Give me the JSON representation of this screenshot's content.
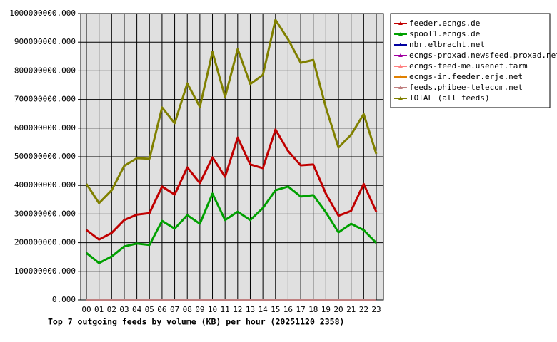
{
  "chart_data": {
    "type": "line",
    "title": "Top 7 outgoing feeds by volume (KB) per hour (20251120 2358)",
    "categories": [
      "00",
      "01",
      "02",
      "03",
      "04",
      "05",
      "06",
      "07",
      "08",
      "09",
      "10",
      "11",
      "12",
      "13",
      "14",
      "15",
      "16",
      "17",
      "18",
      "19",
      "20",
      "21",
      "22",
      "23"
    ],
    "ylim": [
      0,
      1000000000
    ],
    "yticks": [
      {
        "value": 0,
        "label": "0.000"
      },
      {
        "value": 100000000,
        "label": "100000000.000"
      },
      {
        "value": 200000000,
        "label": "200000000.000"
      },
      {
        "value": 300000000,
        "label": "300000000.000"
      },
      {
        "value": 400000000,
        "label": "400000000.000"
      },
      {
        "value": 500000000,
        "label": "500000000.000"
      },
      {
        "value": 600000000,
        "label": "600000000.000"
      },
      {
        "value": 700000000,
        "label": "700000000.000"
      },
      {
        "value": 800000000,
        "label": "800000000.000"
      },
      {
        "value": 900000000,
        "label": "900000000.000"
      },
      {
        "value": 1000000000,
        "label": "1000000000.000"
      }
    ],
    "grid": true,
    "legend": "right",
    "series": [
      {
        "name": "feeder.ecngs.de",
        "color": "#c00000",
        "values": [
          244000000,
          211000000,
          234000000,
          279000000,
          298000000,
          303000000,
          396000000,
          368000000,
          463000000,
          408000000,
          498000000,
          430000000,
          567000000,
          473000000,
          460000000,
          595000000,
          520000000,
          470000000,
          473000000,
          371000000,
          294000000,
          311000000,
          405000000,
          308000000
        ]
      },
      {
        "name": "spool1.ecngs.de",
        "color": "#00a000",
        "values": [
          164000000,
          129000000,
          152000000,
          187000000,
          197000000,
          192000000,
          276000000,
          249000000,
          296000000,
          266000000,
          371000000,
          279000000,
          308000000,
          279000000,
          321000000,
          383000000,
          396000000,
          361000000,
          366000000,
          306000000,
          236000000,
          266000000,
          244000000,
          199000000
        ]
      },
      {
        "name": "nbr.elbracht.net",
        "color": "#0000a0",
        "values": [
          0,
          0,
          0,
          0,
          0,
          0,
          0,
          0,
          0,
          0,
          0,
          0,
          0,
          0,
          0,
          0,
          0,
          0,
          0,
          0,
          0,
          0,
          0,
          0
        ]
      },
      {
        "name": "ecngs-proxad.newsfeed.proxad.net",
        "color": "#a000a0",
        "values": [
          0,
          0,
          0,
          0,
          0,
          0,
          0,
          0,
          0,
          0,
          0,
          0,
          0,
          0,
          0,
          0,
          0,
          0,
          0,
          0,
          0,
          0,
          0,
          0
        ]
      },
      {
        "name": "ecngs-feed-me.usenet.farm",
        "color": "#ff8080",
        "values": [
          0,
          0,
          0,
          0,
          0,
          0,
          0,
          0,
          0,
          0,
          0,
          0,
          0,
          0,
          0,
          0,
          0,
          0,
          0,
          0,
          0,
          0,
          0,
          0
        ]
      },
      {
        "name": "ecngs-in.feeder.erje.net",
        "color": "#e08000",
        "values": [
          0,
          0,
          0,
          0,
          0,
          0,
          0,
          0,
          0,
          0,
          0,
          0,
          0,
          0,
          0,
          0,
          0,
          0,
          0,
          0,
          0,
          0,
          0,
          0
        ]
      },
      {
        "name": "feeds.phibee-telecom.net",
        "color": "#c08080",
        "values": [
          0,
          0,
          0,
          0,
          0,
          0,
          0,
          0,
          0,
          0,
          0,
          0,
          0,
          0,
          0,
          0,
          0,
          0,
          0,
          0,
          0,
          0,
          0,
          0
        ]
      },
      {
        "name": "TOTAL (all feeds)",
        "color": "#808000",
        "values": [
          405000000,
          338000000,
          383000000,
          468000000,
          495000000,
          493000000,
          672000000,
          617000000,
          756000000,
          674000000,
          866000000,
          709000000,
          876000000,
          754000000,
          786000000,
          978000000,
          910000000,
          828000000,
          838000000,
          672000000,
          532000000,
          577000000,
          649000000,
          510000000
        ]
      }
    ]
  }
}
